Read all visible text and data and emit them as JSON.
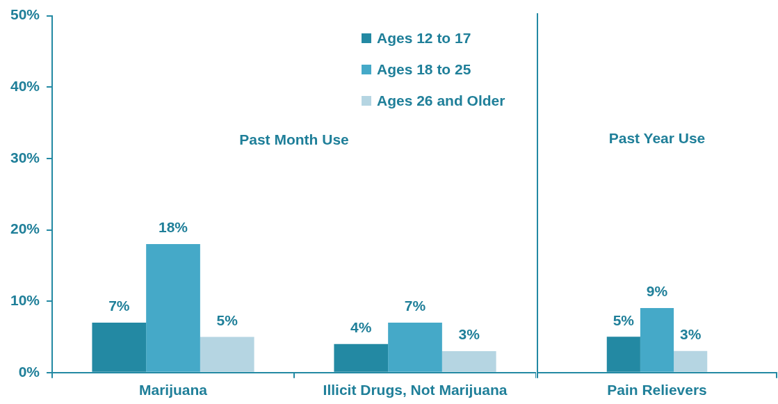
{
  "chart_data": [
    {
      "type": "bar",
      "title": "Past Month Use",
      "categories": [
        "Marijuana",
        "Illicit Drugs, Not Marijuana"
      ],
      "series": [
        {
          "name": "Ages 12 to 17",
          "color": "#2389a3",
          "values": [
            7,
            4
          ],
          "value_labels": [
            "7%",
            "4%"
          ]
        },
        {
          "name": "Ages 18 to 25",
          "color": "#45a9c8",
          "values": [
            18,
            7
          ],
          "value_labels": [
            "18%",
            "7%"
          ]
        },
        {
          "name": "Ages 26 and Older",
          "color": "#b5d5e2",
          "values": [
            5,
            3
          ],
          "value_labels": [
            "5%",
            "3%"
          ]
        }
      ],
      "ylim": [
        0,
        50
      ],
      "yticks": [
        {
          "value": 0,
          "label": "0%"
        },
        {
          "value": 10,
          "label": "10%"
        },
        {
          "value": 20,
          "label": "20%"
        },
        {
          "value": 30,
          "label": "30%"
        },
        {
          "value": 40,
          "label": "40%"
        },
        {
          "value": 50,
          "label": "50%"
        }
      ],
      "legend": "top",
      "grid": false
    },
    {
      "type": "bar",
      "title": "Past Year Use",
      "categories": [
        "Pain Relievers"
      ],
      "series": [
        {
          "color": "#2389a3",
          "values": [
            5
          ],
          "value_labels": [
            "5%"
          ]
        },
        {
          "color": "#45a9c8",
          "values": [
            9
          ],
          "value_labels": [
            "9%"
          ]
        },
        {
          "color": "#b5d5e2",
          "values": [
            3
          ],
          "value_labels": [
            "3%"
          ]
        }
      ],
      "ylim": [
        0,
        50
      ],
      "yticks": [
        {
          "value": 0,
          "label": null
        },
        {
          "value": 10,
          "label": null
        },
        {
          "value": 20,
          "label": null
        },
        {
          "value": 30,
          "label": null
        },
        {
          "value": 40,
          "label": null
        },
        {
          "value": 50,
          "label": null
        }
      ],
      "tick_labels": "x",
      "grid": false
    }
  ]
}
